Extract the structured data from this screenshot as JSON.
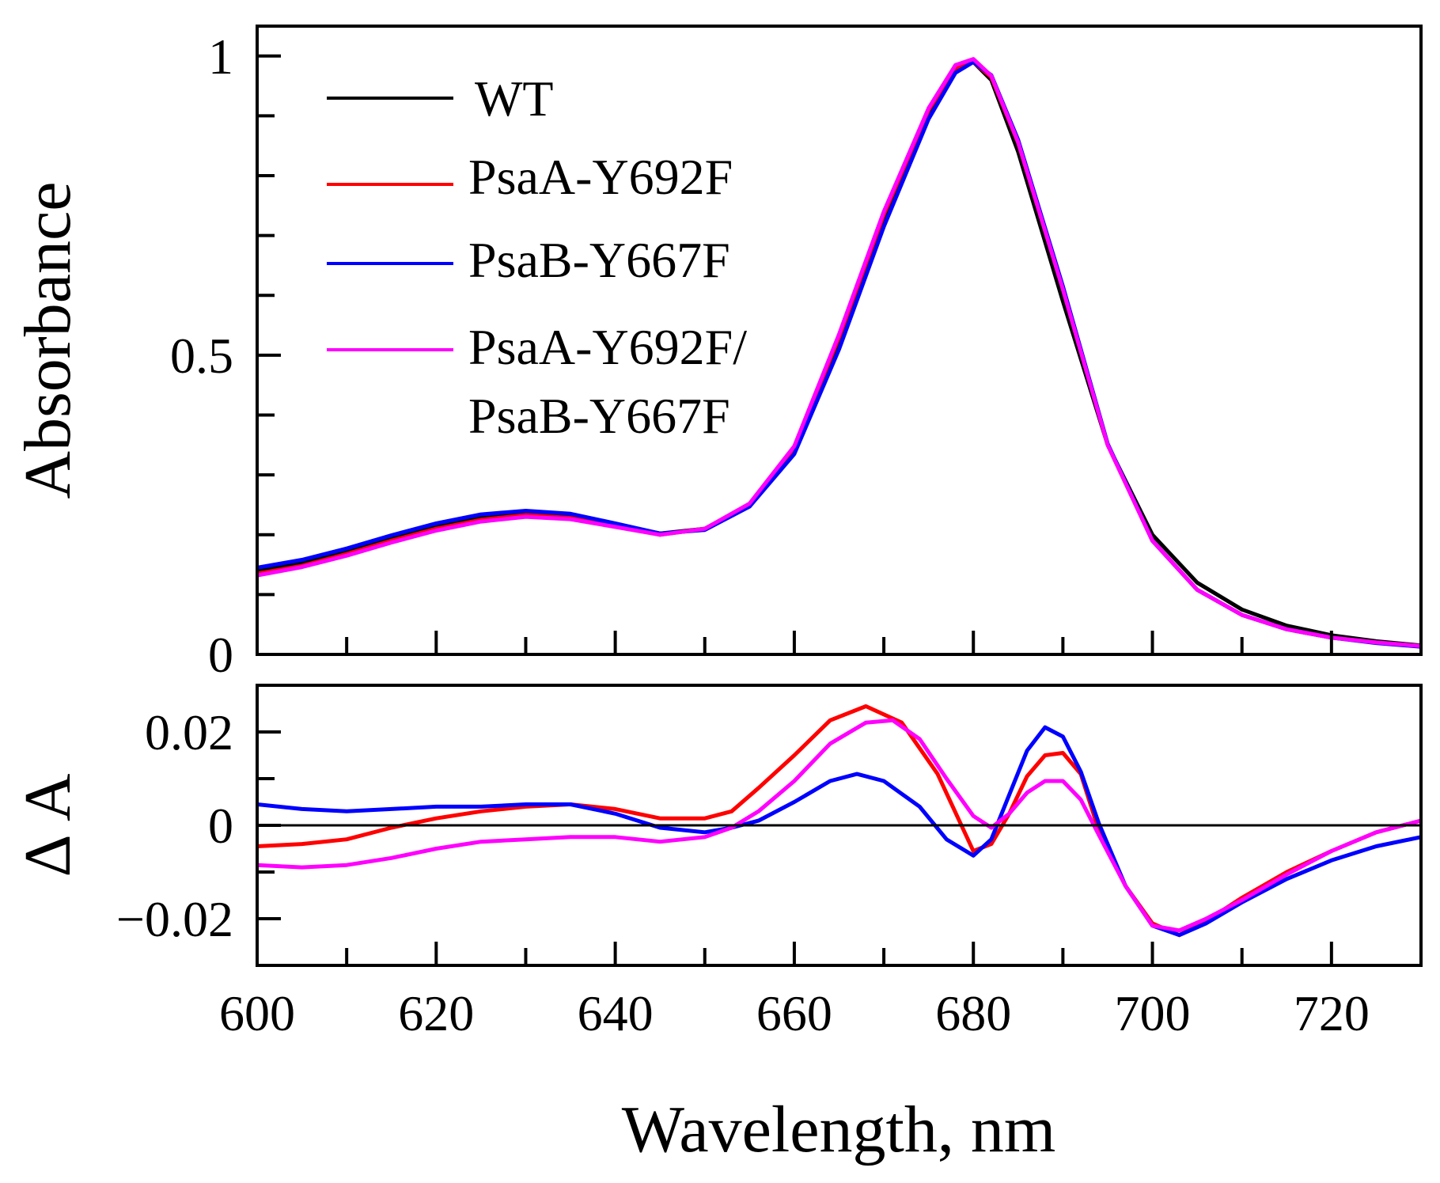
{
  "chart_data": [
    {
      "type": "line",
      "panel": "absorbance",
      "title": "",
      "xlabel": "Wavelength, nm",
      "ylabel": "Absorbance",
      "xlim": [
        600,
        730
      ],
      "ylim": [
        0,
        1.05
      ],
      "x_major_ticks": [
        600,
        620,
        640,
        660,
        680,
        700,
        720
      ],
      "x_minor_ticks": [
        610,
        630,
        650,
        670,
        690,
        710
      ],
      "y_tick_labels": [
        {
          "value": 0,
          "label": "0"
        },
        {
          "value": 0.5,
          "label": "0.5"
        },
        {
          "value": 1,
          "label": "1"
        }
      ],
      "y_minor_ticks": [
        0.1,
        0.2,
        0.3,
        0.4,
        0.6,
        0.7,
        0.8,
        0.9
      ],
      "legend": {
        "placement": "top-left",
        "entries": [
          {
            "label": "WT",
            "color": "#000000"
          },
          {
            "label": "PsaA-Y692F",
            "color": "#ff0000"
          },
          {
            "label": "PsaB-Y667F",
            "color": "#0000ff"
          },
          {
            "label": "PsaA-Y692F/",
            "label2": "PsaB-Y667F",
            "color": "#ff00ff"
          }
        ]
      },
      "series": [
        {
          "name": "WT",
          "color": "#000000",
          "x": [
            600,
            605,
            610,
            615,
            620,
            625,
            630,
            635,
            640,
            645,
            650,
            655,
            660,
            665,
            670,
            675,
            678,
            680,
            682,
            685,
            690,
            695,
            700,
            705,
            710,
            715,
            720,
            725,
            730
          ],
          "y": [
            0.14,
            0.153,
            0.172,
            0.195,
            0.215,
            0.23,
            0.237,
            0.232,
            0.217,
            0.202,
            0.21,
            0.25,
            0.34,
            0.52,
            0.72,
            0.9,
            0.975,
            0.99,
            0.96,
            0.84,
            0.59,
            0.35,
            0.2,
            0.12,
            0.075,
            0.048,
            0.032,
            0.022,
            0.015
          ]
        },
        {
          "name": "PsaA-Y692F",
          "color": "#ff0000",
          "x": [
            600,
            605,
            610,
            615,
            620,
            625,
            630,
            635,
            640,
            645,
            650,
            655,
            660,
            665,
            670,
            675,
            678,
            680,
            682,
            685,
            690,
            695,
            700,
            705,
            710,
            715,
            720,
            725,
            730
          ],
          "y": [
            0.135,
            0.148,
            0.168,
            0.19,
            0.21,
            0.225,
            0.233,
            0.228,
            0.215,
            0.2,
            0.21,
            0.25,
            0.345,
            0.53,
            0.735,
            0.91,
            0.98,
            0.99,
            0.965,
            0.855,
            0.61,
            0.35,
            0.19,
            0.108,
            0.066,
            0.042,
            0.028,
            0.02,
            0.014
          ]
        },
        {
          "name": "PsaB-Y667F",
          "color": "#0000ff",
          "x": [
            600,
            605,
            610,
            615,
            620,
            625,
            630,
            635,
            640,
            645,
            650,
            655,
            660,
            665,
            670,
            675,
            678,
            680,
            682,
            685,
            690,
            695,
            700,
            705,
            710,
            715,
            720,
            725,
            730
          ],
          "y": [
            0.145,
            0.158,
            0.177,
            0.199,
            0.219,
            0.234,
            0.24,
            0.235,
            0.219,
            0.202,
            0.208,
            0.247,
            0.335,
            0.51,
            0.715,
            0.895,
            0.972,
            0.99,
            0.968,
            0.86,
            0.615,
            0.352,
            0.19,
            0.108,
            0.066,
            0.042,
            0.028,
            0.019,
            0.013
          ]
        },
        {
          "name": "PsaA-Y692F/PsaB-Y667F",
          "color": "#ff00ff",
          "x": [
            600,
            605,
            610,
            615,
            620,
            625,
            630,
            635,
            640,
            645,
            650,
            655,
            660,
            665,
            670,
            675,
            678,
            680,
            682,
            685,
            690,
            695,
            700,
            705,
            710,
            715,
            720,
            725,
            730
          ],
          "y": [
            0.132,
            0.146,
            0.165,
            0.187,
            0.207,
            0.222,
            0.23,
            0.226,
            0.213,
            0.2,
            0.21,
            0.252,
            0.348,
            0.535,
            0.74,
            0.913,
            0.985,
            0.995,
            0.967,
            0.856,
            0.61,
            0.35,
            0.19,
            0.108,
            0.066,
            0.042,
            0.028,
            0.02,
            0.014
          ]
        }
      ]
    },
    {
      "type": "line",
      "panel": "difference",
      "title": "",
      "xlabel": "Wavelength, nm",
      "ylabel": "Δ A",
      "xlim": [
        600,
        730
      ],
      "ylim": [
        -0.03,
        0.03
      ],
      "x_major_ticks": [
        600,
        620,
        640,
        660,
        680,
        700,
        720
      ],
      "x_minor_ticks": [
        610,
        630,
        650,
        670,
        690,
        710
      ],
      "x_tick_labels": [
        {
          "value": 600,
          "label": "600"
        },
        {
          "value": 620,
          "label": "620"
        },
        {
          "value": 640,
          "label": "640"
        },
        {
          "value": 660,
          "label": "660"
        },
        {
          "value": 680,
          "label": "680"
        },
        {
          "value": 700,
          "label": "700"
        },
        {
          "value": 720,
          "label": "720"
        }
      ],
      "y_tick_labels": [
        {
          "value": 0.02,
          "label": "0.02"
        },
        {
          "value": 0,
          "label": "0"
        },
        {
          "value": -0.02,
          "label": "−0.02"
        }
      ],
      "y_minor_ticks": [
        0.01,
        -0.01
      ],
      "zero_line": true,
      "series": [
        {
          "name": "PsaA-Y692F",
          "color": "#ff0000",
          "x": [
            600,
            605,
            610,
            615,
            620,
            625,
            630,
            635,
            640,
            645,
            650,
            653,
            656,
            660,
            664,
            668,
            672,
            676,
            680,
            682,
            684,
            686,
            688,
            690,
            692,
            694,
            697,
            700,
            703,
            706,
            710,
            715,
            720,
            725,
            730
          ],
          "y": [
            -0.0045,
            -0.004,
            -0.003,
            -0.0005,
            0.0015,
            0.003,
            0.004,
            0.0045,
            0.0035,
            0.0015,
            0.0015,
            0.003,
            0.008,
            0.015,
            0.0225,
            0.0255,
            0.022,
            0.011,
            -0.0055,
            -0.004,
            0.0025,
            0.0105,
            0.015,
            0.0155,
            0.011,
            -0.001,
            -0.013,
            -0.021,
            -0.0235,
            -0.0205,
            -0.0155,
            -0.01,
            -0.0055,
            -0.0015,
            0.001
          ]
        },
        {
          "name": "PsaB-Y667F",
          "color": "#0000ff",
          "x": [
            600,
            605,
            610,
            615,
            620,
            625,
            630,
            635,
            640,
            645,
            650,
            653,
            656,
            660,
            664,
            667,
            670,
            674,
            677,
            680,
            682,
            684,
            686,
            688,
            690,
            692,
            694,
            697,
            700,
            703,
            706,
            710,
            715,
            720,
            725,
            730
          ],
          "y": [
            0.0045,
            0.0035,
            0.003,
            0.0035,
            0.004,
            0.004,
            0.0045,
            0.0045,
            0.0025,
            -0.0005,
            -0.0015,
            -0.0005,
            0.001,
            0.005,
            0.0095,
            0.011,
            0.0095,
            0.004,
            -0.003,
            -0.0065,
            -0.003,
            0.0065,
            0.016,
            0.021,
            0.019,
            0.0115,
            0.0005,
            -0.013,
            -0.0215,
            -0.0235,
            -0.021,
            -0.0165,
            -0.0115,
            -0.0075,
            -0.0045,
            -0.0025
          ]
        },
        {
          "name": "PsaA-Y692F/PsaB-Y667F",
          "color": "#ff00ff",
          "x": [
            600,
            605,
            610,
            615,
            620,
            625,
            630,
            635,
            640,
            645,
            650,
            653,
            656,
            660,
            664,
            668,
            671,
            674,
            677,
            680,
            682,
            684,
            686,
            688,
            690,
            692,
            694,
            697,
            700,
            703,
            706,
            710,
            715,
            720,
            725,
            730
          ],
          "y": [
            -0.0085,
            -0.009,
            -0.0085,
            -0.007,
            -0.005,
            -0.0035,
            -0.003,
            -0.0025,
            -0.0025,
            -0.0035,
            -0.0025,
            -0.0005,
            0.003,
            0.0095,
            0.0175,
            0.022,
            0.0225,
            0.0185,
            0.01,
            0.002,
            -0.0005,
            0.0025,
            0.007,
            0.0095,
            0.0095,
            0.0055,
            -0.002,
            -0.013,
            -0.0215,
            -0.0225,
            -0.02,
            -0.016,
            -0.0105,
            -0.0055,
            -0.0015,
            0.001
          ]
        },
        {
          "name": "zero",
          "color": "#000000",
          "x": [
            600,
            730
          ],
          "y": [
            0,
            0
          ]
        }
      ]
    }
  ]
}
